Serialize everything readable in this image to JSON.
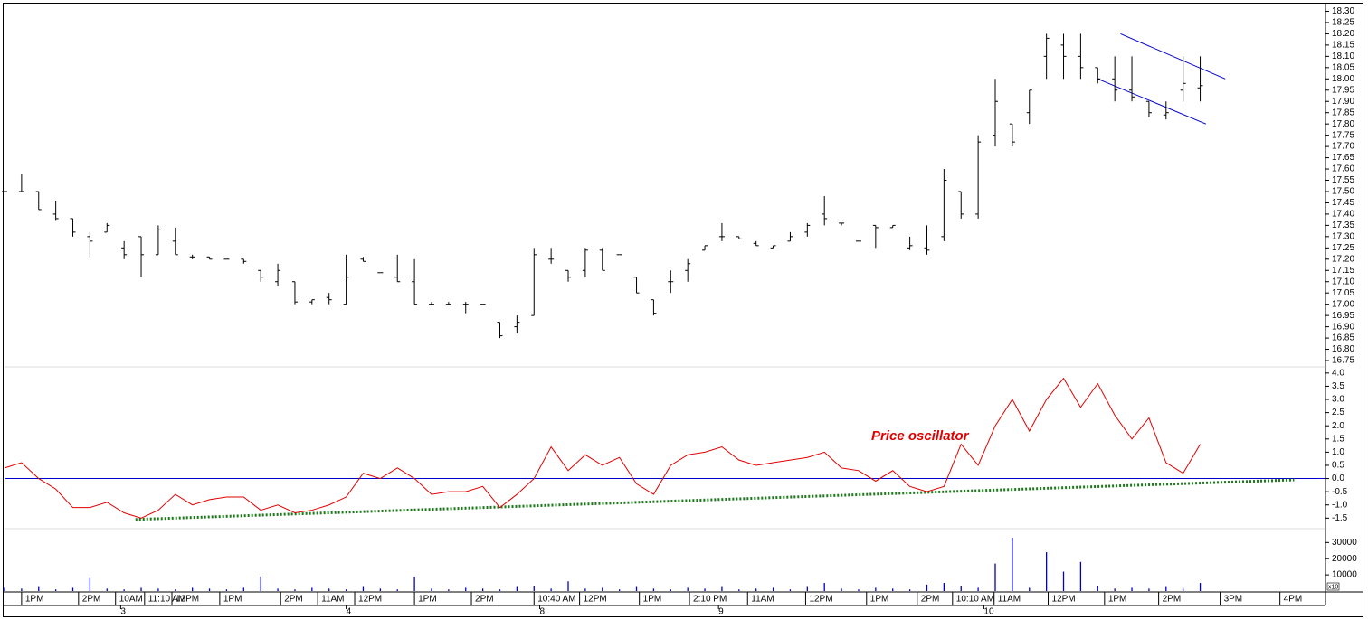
{
  "chart_data": [
    {
      "type": "ohlc",
      "color": "#000000",
      "x": [
        0,
        3,
        6,
        9,
        12,
        15,
        18,
        21,
        24,
        27,
        30,
        33,
        36,
        39,
        42,
        45,
        48,
        51,
        54,
        57,
        60,
        63,
        66,
        69,
        72,
        75,
        78,
        81,
        84,
        87,
        90,
        93,
        96,
        99,
        102,
        105,
        108,
        111,
        114,
        117,
        120,
        123,
        126,
        129,
        132,
        135,
        138,
        141,
        144,
        147,
        150,
        153,
        156,
        159,
        162,
        165,
        168,
        171,
        174,
        177,
        180,
        183,
        186,
        189,
        192,
        195,
        198,
        201,
        204,
        207,
        210
      ],
      "open": [
        17.5,
        17.5,
        17.5,
        17.4,
        17.38,
        17.3,
        17.32,
        17.25,
        17.3,
        17.22,
        17.28,
        17.21,
        17.21,
        17.2,
        17.2,
        17.15,
        17.1,
        17.1,
        17.01,
        17.03,
        17.0,
        17.2,
        17.14,
        17.12,
        17.1,
        17.0,
        17.0,
        17.0,
        17.0,
        16.92,
        16.9,
        16.95,
        17.2,
        17.15,
        17.15,
        17.24,
        17.22,
        17.12,
        17.02,
        17.1,
        17.15,
        17.24,
        17.3,
        17.3,
        17.27,
        17.25,
        17.28,
        17.32,
        17.4,
        17.36,
        17.28,
        17.35,
        17.34,
        17.25,
        17.25,
        17.3,
        17.5,
        17.4,
        17.75,
        17.8,
        17.85,
        18.1,
        18.15,
        18.1,
        18.05,
        18.0,
        17.95,
        17.9,
        17.84,
        17.95,
        17.96
      ],
      "high": [
        17.5,
        17.58,
        17.5,
        17.46,
        17.38,
        17.32,
        17.36,
        17.28,
        17.3,
        17.35,
        17.34,
        17.22,
        17.21,
        17.2,
        17.2,
        17.15,
        17.18,
        17.1,
        17.02,
        17.05,
        17.22,
        17.21,
        17.14,
        17.22,
        17.2,
        17.01,
        17.01,
        17.01,
        17.0,
        16.92,
        16.95,
        17.25,
        17.25,
        17.15,
        17.25,
        17.25,
        17.22,
        17.12,
        17.02,
        17.15,
        17.2,
        17.26,
        17.36,
        17.3,
        17.28,
        17.26,
        17.32,
        17.36,
        17.48,
        17.36,
        17.28,
        17.35,
        17.35,
        17.3,
        17.35,
        17.6,
        17.5,
        17.75,
        18.0,
        17.8,
        17.95,
        18.2,
        18.2,
        18.2,
        18.05,
        18.1,
        18.1,
        17.9,
        17.9,
        18.1,
        18.1
      ],
      "low": [
        17.5,
        17.5,
        17.42,
        17.37,
        17.3,
        17.21,
        17.32,
        17.2,
        17.12,
        17.22,
        17.22,
        17.2,
        17.2,
        17.2,
        17.18,
        17.1,
        17.08,
        17.0,
        17.0,
        17.0,
        17.0,
        17.19,
        17.14,
        17.1,
        17.0,
        17.0,
        17.0,
        16.96,
        17.0,
        16.85,
        16.87,
        16.95,
        17.18,
        17.1,
        17.12,
        17.15,
        17.22,
        17.05,
        16.95,
        17.05,
        17.1,
        17.24,
        17.28,
        17.29,
        17.26,
        17.25,
        17.28,
        17.3,
        17.35,
        17.35,
        17.28,
        17.25,
        17.34,
        17.24,
        17.22,
        17.28,
        17.38,
        17.38,
        17.7,
        17.7,
        17.8,
        18.0,
        18.0,
        18.0,
        17.98,
        17.9,
        17.9,
        17.83,
        17.82,
        17.9,
        17.9
      ],
      "close": [
        17.5,
        17.5,
        17.42,
        17.38,
        17.32,
        17.28,
        17.35,
        17.22,
        17.22,
        17.33,
        17.22,
        17.21,
        17.2,
        17.2,
        17.19,
        17.12,
        17.15,
        17.01,
        17.02,
        17.02,
        17.12,
        17.19,
        17.14,
        17.1,
        17.0,
        17.0,
        17.0,
        17.0,
        17.0,
        16.86,
        16.92,
        17.22,
        17.2,
        17.12,
        17.24,
        17.15,
        17.22,
        17.05,
        16.96,
        17.1,
        17.18,
        17.26,
        17.3,
        17.29,
        17.26,
        17.26,
        17.3,
        17.35,
        17.38,
        17.36,
        17.28,
        17.34,
        17.35,
        17.26,
        17.24,
        17.55,
        17.4,
        17.72,
        17.9,
        17.72,
        17.95,
        18.18,
        18.1,
        18.05,
        18.0,
        17.95,
        17.92,
        17.85,
        17.85,
        17.98,
        17.97
      ],
      "trendlines": [
        {
          "color": "#0000cc",
          "points": [
            [
              196,
              18.2
            ],
            [
              214.4,
              18.0
            ]
          ]
        },
        {
          "color": "#0000cc",
          "points": [
            [
              192,
              18.0
            ],
            [
              211,
              17.8
            ]
          ]
        }
      ],
      "xlim": [
        0,
        232
      ],
      "ylim": [
        16.722,
        18.33
      ],
      "yticks": [
        16.75,
        {
          "value": 16.8,
          "label": "16.80"
        },
        16.85,
        {
          "value": 16.9,
          "label": "16.90"
        },
        16.95,
        {
          "value": 17,
          "label": "17.00"
        },
        17.05,
        {
          "value": 17.1,
          "label": "17.10"
        },
        17.15,
        {
          "value": 17.2,
          "label": "17.20"
        },
        17.25,
        {
          "value": 17.3,
          "label": "17.30"
        },
        17.35,
        {
          "value": 17.4,
          "label": "17.40"
        },
        17.45,
        {
          "value": 17.5,
          "label": "17.50"
        },
        17.55,
        {
          "value": 17.6,
          "label": "17.60"
        },
        17.65,
        {
          "value": 17.7,
          "label": "17.70"
        },
        17.75,
        {
          "value": 17.8,
          "label": "17.80"
        },
        17.85,
        {
          "value": 17.9,
          "label": "17.90"
        },
        17.95,
        {
          "value": 18,
          "label": "18.00"
        },
        18.05,
        {
          "value": 18.1,
          "label": "18.10"
        },
        18.15,
        {
          "value": 18.2,
          "label": "18.20"
        },
        18.25,
        {
          "value": 18.3,
          "label": "18.30"
        }
      ]
    },
    {
      "type": "line",
      "annotation": "Price oscillator",
      "color": "#e00000",
      "x": [
        0,
        3,
        6,
        9,
        12,
        15,
        18,
        21,
        24,
        27,
        30,
        33,
        36,
        39,
        42,
        45,
        48,
        51,
        54,
        57,
        60,
        63,
        66,
        69,
        72,
        75,
        78,
        81,
        84,
        87,
        90,
        93,
        96,
        99,
        102,
        105,
        108,
        111,
        114,
        117,
        120,
        123,
        126,
        129,
        132,
        135,
        138,
        141,
        144,
        147,
        150,
        153,
        156,
        159,
        162,
        165,
        168,
        171,
        174,
        177,
        180,
        183,
        186,
        189,
        192,
        195,
        198,
        201,
        204,
        207,
        210
      ],
      "values": [
        0.4,
        0.6,
        0.0,
        -0.4,
        -1.1,
        -1.1,
        -0.9,
        -1.3,
        -1.5,
        -1.2,
        -0.6,
        -1.0,
        -0.8,
        -0.7,
        -0.7,
        -1.2,
        -1.0,
        -1.3,
        -1.2,
        -1.0,
        -0.7,
        0.2,
        0.0,
        0.4,
        0.0,
        -0.6,
        -0.5,
        -0.5,
        -0.3,
        -1.1,
        -0.6,
        0.0,
        1.2,
        0.3,
        0.9,
        0.5,
        0.8,
        -0.2,
        -0.6,
        0.5,
        0.9,
        1.0,
        1.2,
        0.7,
        0.5,
        0.6,
        0.7,
        0.8,
        1.0,
        0.4,
        0.3,
        -0.1,
        0.3,
        -0.3,
        -0.5,
        -0.3,
        1.3,
        0.5,
        2.0,
        3.0,
        1.8,
        3.0,
        3.8,
        2.7,
        3.6,
        2.4,
        1.5,
        2.3,
        0.6,
        0.2,
        1.3
      ],
      "reference_line": {
        "value": 0,
        "color": "#0000cc"
      },
      "trendlines": [
        {
          "color": "#1a7a1a",
          "style": "dotted",
          "points": [
            [
              23,
              -1.55
            ],
            [
              226.5,
              -0.05
            ]
          ]
        }
      ],
      "xlim": [
        0,
        232
      ],
      "ylim": [
        -1.9,
        4.2
      ],
      "yticks": [
        -1.5,
        {
          "value": -1,
          "label": "-1.0"
        },
        -0.5,
        {
          "value": 0,
          "label": "0.0"
        },
        0.5,
        {
          "value": 1,
          "label": "1.0"
        },
        1.5,
        {
          "value": 2,
          "label": "2.0"
        },
        2.5,
        {
          "value": 3,
          "label": "3.0"
        },
        3.5,
        {
          "value": 4,
          "label": "4.0"
        }
      ]
    },
    {
      "type": "bar",
      "color": "#0000cc",
      "axis_unit": "x10",
      "x": [
        0,
        3,
        6,
        9,
        12,
        15,
        18,
        21,
        24,
        27,
        30,
        33,
        36,
        39,
        42,
        45,
        48,
        51,
        54,
        57,
        60,
        63,
        66,
        69,
        72,
        75,
        78,
        81,
        84,
        87,
        90,
        93,
        96,
        99,
        102,
        105,
        108,
        111,
        114,
        117,
        120,
        123,
        126,
        129,
        132,
        135,
        138,
        141,
        144,
        147,
        150,
        153,
        156,
        159,
        162,
        165,
        168,
        171,
        174,
        177,
        180,
        183,
        186,
        189,
        192,
        195,
        198,
        201,
        204,
        207,
        210
      ],
      "values": [
        2000,
        1500,
        2500,
        1000,
        2000,
        8000,
        1500,
        1000,
        2000,
        1500,
        1000,
        2000,
        1500,
        1000,
        2000,
        9000,
        1500,
        1000,
        2000,
        1500,
        1000,
        2500,
        1500,
        1000,
        9000,
        1500,
        1000,
        2000,
        1500,
        1000,
        2500,
        3000,
        1500,
        6000,
        1500,
        2000,
        1000,
        2500,
        1500,
        1000,
        2000,
        1500,
        2500,
        1000,
        1500,
        2000,
        1000,
        2500,
        5000,
        1500,
        1000,
        2000,
        1500,
        1000,
        4000,
        5000,
        3000,
        2000,
        17000,
        33000,
        2000,
        24000,
        12000,
        18000,
        3000,
        1500,
        2000,
        1500,
        2500,
        1500,
        5000
      ],
      "xlim": [
        0,
        232
      ],
      "ylim": [
        0,
        38000
      ],
      "yticks": [
        10000,
        20000,
        30000
      ],
      "xticks": [
        {
          "value": 3,
          "label": "1PM"
        },
        {
          "value": 13,
          "label": "2PM"
        },
        {
          "value": 19.5,
          "label": "10AM"
        },
        {
          "value": 24.6,
          "label": "11:10 AM"
        },
        {
          "value": 29.4,
          "label": "12PM"
        },
        {
          "value": 37.8,
          "label": "1PM"
        },
        {
          "value": 48.5,
          "label": "2PM"
        },
        {
          "value": 55,
          "label": "11AM"
        },
        {
          "value": 61.5,
          "label": "12PM"
        },
        {
          "value": 72,
          "label": "1PM"
        },
        {
          "value": 82,
          "label": "2PM"
        },
        {
          "value": 93,
          "label": "10:40 AM"
        },
        {
          "value": 101,
          "label": "12PM"
        },
        {
          "value": 111.5,
          "label": "1PM"
        },
        {
          "value": 120.3,
          "label": "2:10 PM"
        },
        {
          "value": 130.5,
          "label": "11AM"
        },
        {
          "value": 140.7,
          "label": "12PM"
        },
        {
          "value": 151.4,
          "label": "1PM"
        },
        {
          "value": 160.3,
          "label": "2PM"
        },
        {
          "value": 166.5,
          "label": "10:10 AM"
        },
        {
          "value": 173.8,
          "label": "11AM"
        },
        {
          "value": 183.3,
          "label": "12PM"
        },
        {
          "value": 193.2,
          "label": "1PM"
        },
        {
          "value": 202.7,
          "label": "2PM"
        },
        {
          "value": 213.5,
          "label": "3PM"
        },
        {
          "value": 224,
          "label": "4PM"
        }
      ],
      "day_ticks": [
        {
          "value": 20.4,
          "label": "3"
        },
        {
          "value": 60,
          "label": "4"
        },
        {
          "value": 94,
          "label": "8"
        },
        {
          "value": 125.4,
          "label": "9"
        },
        {
          "value": 172,
          "label": "10"
        }
      ]
    }
  ]
}
